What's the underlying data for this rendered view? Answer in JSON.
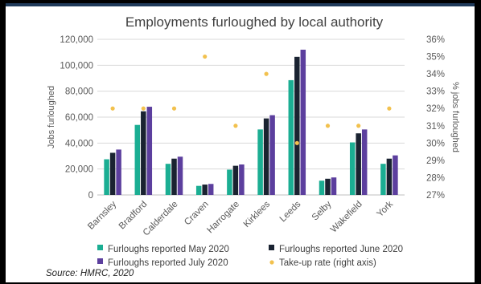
{
  "colors": {
    "may": "#1bae93",
    "june": "#1a2331",
    "july": "#5c3f9e",
    "takeup": "#f2c14e",
    "axis_text": "#595959",
    "grid": "#d9d9d9"
  },
  "source": "Source: HMRC, 2020",
  "chart_data": {
    "type": "bar",
    "title": "Employments furloughed by local authority",
    "ylabel": "Jobs furloughed",
    "y2label": "% jobs furloughed",
    "ylim": [
      0,
      120000
    ],
    "y2lim": [
      27,
      36
    ],
    "yticks": [
      "0",
      "20,000",
      "40,000",
      "60,000",
      "80,000",
      "100,000",
      "120,000"
    ],
    "y2ticks": [
      "27%",
      "28%",
      "29%",
      "30%",
      "31%",
      "32%",
      "33%",
      "34%",
      "35%",
      "36%"
    ],
    "grid": true,
    "legend_position": "bottom",
    "categories": [
      "Barnsley",
      "Bradford",
      "Calderdale",
      "Craven",
      "Harrogate",
      "Kirklees",
      "Leeds",
      "Selby",
      "Wakefield",
      "York"
    ],
    "series": [
      {
        "name": "Furloughs reported May 2020",
        "key": "may",
        "values": [
          27500,
          54000,
          24000,
          7000,
          19500,
          50500,
          88500,
          11000,
          40500,
          24000
        ]
      },
      {
        "name": "Furloughs reported June 2020",
        "key": "june",
        "values": [
          32500,
          64500,
          28000,
          8000,
          22500,
          59000,
          106500,
          12500,
          47500,
          28000
        ]
      },
      {
        "name": "Furloughs reported July 2020",
        "key": "july",
        "values": [
          35000,
          68000,
          29500,
          8500,
          23500,
          61500,
          112000,
          13500,
          50500,
          30500
        ]
      },
      {
        "name": "Take-up rate (right axis)",
        "key": "takeup",
        "type": "scatter",
        "axis": "right",
        "values": [
          32,
          32,
          32,
          35,
          31,
          34,
          30,
          31,
          31,
          32
        ]
      }
    ]
  }
}
